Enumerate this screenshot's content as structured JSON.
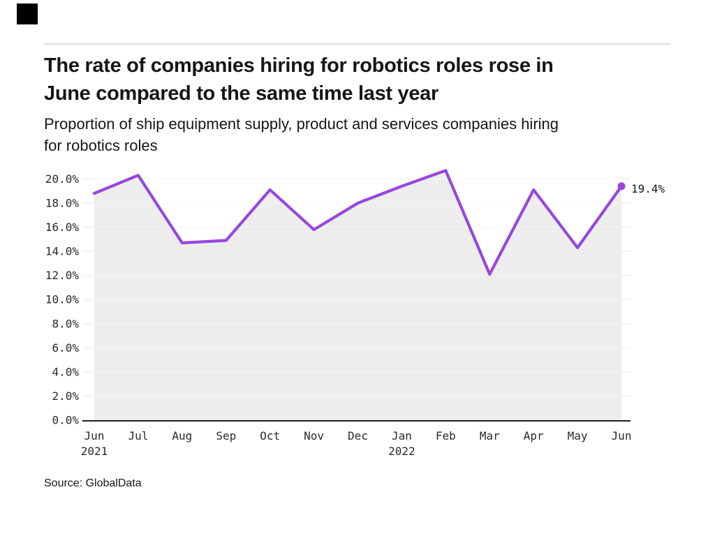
{
  "brand": {
    "logo_color": "#000000"
  },
  "header": {
    "title_lines": [
      "The rate of companies hiring for robotics roles rose in",
      "June compared to the same time last year"
    ],
    "subtitle_lines": [
      "Proportion of ship equipment supply, product and services companies hiring",
      "for robotics roles"
    ]
  },
  "chart_data": {
    "type": "line",
    "title": "The rate of companies hiring for robotics roles rose in June compared to the same time last year",
    "subtitle": "Proportion of ship equipment supply, product and services companies hiring for robotics roles",
    "categories": [
      "Jun 2021",
      "Jul",
      "Aug",
      "Sep",
      "Oct",
      "Nov",
      "Dec",
      "Jan 2022",
      "Feb",
      "Mar",
      "Apr",
      "May",
      "Jun"
    ],
    "values": [
      18.8,
      20.3,
      14.7,
      14.9,
      19.1,
      15.8,
      18.0,
      19.4,
      20.7,
      12.1,
      19.1,
      14.3,
      19.4
    ],
    "end_label": "19.4%",
    "ylim": [
      0,
      20
    ],
    "grid": true,
    "legend": "none",
    "line_color": "#9747dd",
    "area_color": "#ededed",
    "axis_color": "#1f1f1f",
    "grid_color": "#e6e6e6",
    "marker_last_point": true,
    "yticks": [
      {
        "value": 0,
        "label": "0.0%"
      },
      {
        "value": 2,
        "label": "2.0%"
      },
      {
        "value": 4,
        "label": "4.0%"
      },
      {
        "value": 6,
        "label": "6.0%"
      },
      {
        "value": 8,
        "label": "8.0%"
      },
      {
        "value": 10,
        "label": "10.0%"
      },
      {
        "value": 12,
        "label": "12.0%"
      },
      {
        "value": 14,
        "label": "14.0%"
      },
      {
        "value": 16,
        "label": "16.0%"
      },
      {
        "value": 18,
        "label": "18.0%"
      },
      {
        "value": 20,
        "label": "20.0%"
      }
    ],
    "x_labels": [
      {
        "label": "Jun",
        "sub": "2021"
      },
      {
        "label": "Jul"
      },
      {
        "label": "Aug"
      },
      {
        "label": "Sep"
      },
      {
        "label": "Oct"
      },
      {
        "label": "Nov"
      },
      {
        "label": "Dec"
      },
      {
        "label": "Jan",
        "sub": "2022"
      },
      {
        "label": "Feb"
      },
      {
        "label": "Mar"
      },
      {
        "label": "Apr"
      },
      {
        "label": "May"
      },
      {
        "label": "Jun"
      }
    ]
  },
  "footer": {
    "source": "Source: GlobalData"
  }
}
